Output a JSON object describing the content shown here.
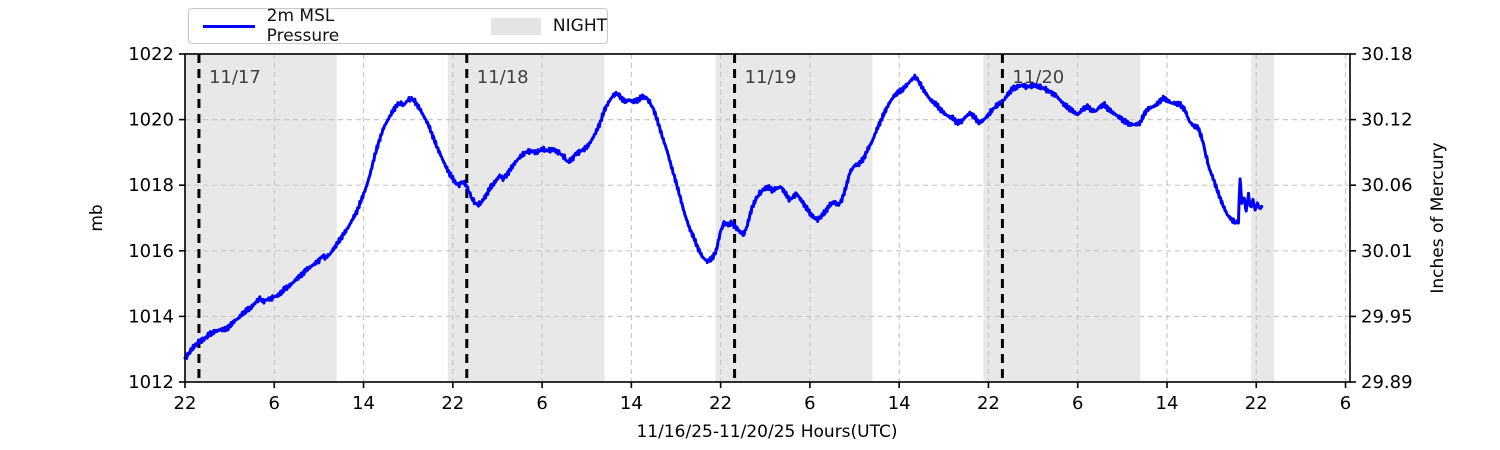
{
  "chart_data": {
    "type": "line",
    "title": "",
    "xlabel": "11/16/25-11/20/25  Hours(UTC)",
    "ylabel_left": "mb",
    "ylabel_right": "Inches of Mercury",
    "legend": [
      "2m MSL Pressure",
      "NIGHT"
    ],
    "colors": {
      "line": "#0000ff",
      "night_band": "#e8e8e8",
      "grid": "#c8c8c8",
      "date_label": "#404040",
      "axis": "#000000"
    },
    "ylim": [
      1012,
      1022
    ],
    "xlim_hours": [
      0,
      104.4
    ],
    "grid": true,
    "y_ticks_left": [
      1012,
      1014,
      1016,
      1018,
      1020,
      1022
    ],
    "y_ticks_right": [
      "29.89",
      "29.95",
      "30.01",
      "30.06",
      "30.12",
      "30.18"
    ],
    "x_ticks": [
      {
        "t": 0,
        "label": "22"
      },
      {
        "t": 8,
        "label": "6"
      },
      {
        "t": 16,
        "label": "14"
      },
      {
        "t": 24,
        "label": "22"
      },
      {
        "t": 32,
        "label": "6"
      },
      {
        "t": 40,
        "label": "14"
      },
      {
        "t": 48,
        "label": "22"
      },
      {
        "t": 56,
        "label": "6"
      },
      {
        "t": 64,
        "label": "14"
      },
      {
        "t": 72,
        "label": "22"
      },
      {
        "t": 80,
        "label": "6"
      },
      {
        "t": 88,
        "label": "14"
      },
      {
        "t": 96,
        "label": "22"
      },
      {
        "t": 104,
        "label": "6"
      }
    ],
    "night_bands": [
      [
        0,
        13.6
      ],
      [
        23.55,
        37.6
      ],
      [
        47.55,
        61.6
      ],
      [
        71.55,
        85.6
      ],
      [
        95.55,
        97.6
      ]
    ],
    "day_lines": [
      {
        "t": 1.25,
        "label": "11/17"
      },
      {
        "t": 25.25,
        "label": "11/18"
      },
      {
        "t": 49.25,
        "label": "11/19"
      },
      {
        "t": 73.25,
        "label": "11/20"
      }
    ],
    "noise_mb": 0.04,
    "series": [
      {
        "name": "2m MSL Pressure",
        "points": [
          [
            0,
            1012.7
          ],
          [
            0.3,
            1012.85
          ],
          [
            0.6,
            1013.0
          ],
          [
            1,
            1013.15
          ],
          [
            1.3,
            1013.25
          ],
          [
            1.7,
            1013.3
          ],
          [
            2,
            1013.4
          ],
          [
            2.4,
            1013.5
          ],
          [
            2.8,
            1013.55
          ],
          [
            3.2,
            1013.6
          ],
          [
            3.6,
            1013.6
          ],
          [
            4,
            1013.7
          ],
          [
            4.4,
            1013.85
          ],
          [
            4.8,
            1013.95
          ],
          [
            5.2,
            1014.1
          ],
          [
            5.6,
            1014.2
          ],
          [
            6,
            1014.3
          ],
          [
            6.4,
            1014.45
          ],
          [
            6.7,
            1014.55
          ],
          [
            7,
            1014.45
          ],
          [
            7.3,
            1014.5
          ],
          [
            7.7,
            1014.55
          ],
          [
            8,
            1014.6
          ],
          [
            8.4,
            1014.65
          ],
          [
            8.8,
            1014.8
          ],
          [
            9.2,
            1014.9
          ],
          [
            9.6,
            1015.0
          ],
          [
            10,
            1015.15
          ],
          [
            10.4,
            1015.25
          ],
          [
            10.8,
            1015.4
          ],
          [
            11.2,
            1015.5
          ],
          [
            11.6,
            1015.6
          ],
          [
            12,
            1015.7
          ],
          [
            12.3,
            1015.85
          ],
          [
            12.6,
            1015.8
          ],
          [
            13,
            1015.9
          ],
          [
            13.4,
            1016.1
          ],
          [
            13.8,
            1016.3
          ],
          [
            14.2,
            1016.5
          ],
          [
            14.6,
            1016.7
          ],
          [
            15,
            1016.95
          ],
          [
            15.4,
            1017.2
          ],
          [
            15.8,
            1017.55
          ],
          [
            16.2,
            1017.9
          ],
          [
            16.6,
            1018.35
          ],
          [
            17,
            1018.9
          ],
          [
            17.4,
            1019.35
          ],
          [
            17.8,
            1019.75
          ],
          [
            18.2,
            1020.0
          ],
          [
            18.6,
            1020.25
          ],
          [
            19,
            1020.45
          ],
          [
            19.3,
            1020.5
          ],
          [
            19.6,
            1020.45
          ],
          [
            20,
            1020.6
          ],
          [
            20.3,
            1020.65
          ],
          [
            20.6,
            1020.55
          ],
          [
            21,
            1020.35
          ],
          [
            21.4,
            1020.1
          ],
          [
            21.8,
            1019.85
          ],
          [
            22.2,
            1019.5
          ],
          [
            22.6,
            1019.15
          ],
          [
            23,
            1018.85
          ],
          [
            23.4,
            1018.55
          ],
          [
            23.8,
            1018.3
          ],
          [
            24.2,
            1018.1
          ],
          [
            24.5,
            1018.0
          ],
          [
            24.8,
            1018.1
          ],
          [
            25.1,
            1018.05
          ],
          [
            25.4,
            1017.85
          ],
          [
            25.7,
            1017.6
          ],
          [
            26,
            1017.45
          ],
          [
            26.3,
            1017.4
          ],
          [
            26.6,
            1017.5
          ],
          [
            27,
            1017.7
          ],
          [
            27.4,
            1017.95
          ],
          [
            27.8,
            1018.1
          ],
          [
            28.2,
            1018.3
          ],
          [
            28.5,
            1018.2
          ],
          [
            28.8,
            1018.3
          ],
          [
            29.2,
            1018.5
          ],
          [
            29.6,
            1018.7
          ],
          [
            30,
            1018.85
          ],
          [
            30.5,
            1019.0
          ],
          [
            31,
            1019.05
          ],
          [
            31.5,
            1019.0
          ],
          [
            32,
            1019.1
          ],
          [
            32.5,
            1019.05
          ],
          [
            33,
            1019.1
          ],
          [
            33.5,
            1019.0
          ],
          [
            34,
            1018.85
          ],
          [
            34.3,
            1018.7
          ],
          [
            34.7,
            1018.8
          ],
          [
            35,
            1018.95
          ],
          [
            35.5,
            1019.05
          ],
          [
            36,
            1019.15
          ],
          [
            36.4,
            1019.35
          ],
          [
            36.8,
            1019.6
          ],
          [
            37.2,
            1019.9
          ],
          [
            37.6,
            1020.3
          ],
          [
            38,
            1020.55
          ],
          [
            38.4,
            1020.75
          ],
          [
            38.7,
            1020.8
          ],
          [
            39,
            1020.7
          ],
          [
            39.4,
            1020.55
          ],
          [
            39.8,
            1020.6
          ],
          [
            40.2,
            1020.55
          ],
          [
            40.6,
            1020.6
          ],
          [
            41,
            1020.7
          ],
          [
            41.4,
            1020.65
          ],
          [
            41.7,
            1020.5
          ],
          [
            42,
            1020.3
          ],
          [
            42.4,
            1019.9
          ],
          [
            42.8,
            1019.45
          ],
          [
            43.2,
            1019.05
          ],
          [
            43.6,
            1018.55
          ],
          [
            44,
            1018.1
          ],
          [
            44.4,
            1017.6
          ],
          [
            44.8,
            1017.1
          ],
          [
            45.2,
            1016.7
          ],
          [
            45.6,
            1016.4
          ],
          [
            46,
            1016.05
          ],
          [
            46.4,
            1015.8
          ],
          [
            46.8,
            1015.68
          ],
          [
            47.2,
            1015.75
          ],
          [
            47.6,
            1016.0
          ],
          [
            48,
            1016.6
          ],
          [
            48.3,
            1016.85
          ],
          [
            48.6,
            1016.8
          ],
          [
            49,
            1016.85
          ],
          [
            49.4,
            1016.7
          ],
          [
            49.8,
            1016.55
          ],
          [
            50.1,
            1016.5
          ],
          [
            50.4,
            1016.8
          ],
          [
            50.8,
            1017.3
          ],
          [
            51.2,
            1017.6
          ],
          [
            51.5,
            1017.75
          ],
          [
            51.8,
            1017.85
          ],
          [
            52.2,
            1017.95
          ],
          [
            52.6,
            1017.85
          ],
          [
            53,
            1017.9
          ],
          [
            53.4,
            1017.95
          ],
          [
            53.8,
            1017.75
          ],
          [
            54.2,
            1017.55
          ],
          [
            54.5,
            1017.65
          ],
          [
            54.8,
            1017.75
          ],
          [
            55.2,
            1017.55
          ],
          [
            55.6,
            1017.35
          ],
          [
            56,
            1017.15
          ],
          [
            56.4,
            1017.0
          ],
          [
            56.7,
            1016.95
          ],
          [
            57,
            1017.05
          ],
          [
            57.4,
            1017.2
          ],
          [
            57.8,
            1017.4
          ],
          [
            58.2,
            1017.5
          ],
          [
            58.5,
            1017.4
          ],
          [
            58.8,
            1017.5
          ],
          [
            59.2,
            1017.9
          ],
          [
            59.6,
            1018.4
          ],
          [
            60,
            1018.6
          ],
          [
            60.4,
            1018.65
          ],
          [
            60.8,
            1018.8
          ],
          [
            61.2,
            1019.1
          ],
          [
            61.6,
            1019.35
          ],
          [
            62,
            1019.7
          ],
          [
            62.4,
            1020.0
          ],
          [
            62.8,
            1020.3
          ],
          [
            63.2,
            1020.55
          ],
          [
            63.6,
            1020.75
          ],
          [
            64,
            1020.85
          ],
          [
            64.4,
            1020.95
          ],
          [
            64.8,
            1021.1
          ],
          [
            65.2,
            1021.25
          ],
          [
            65.4,
            1021.3
          ],
          [
            65.7,
            1021.2
          ],
          [
            66,
            1021.0
          ],
          [
            66.4,
            1020.8
          ],
          [
            66.8,
            1020.6
          ],
          [
            67.2,
            1020.5
          ],
          [
            67.6,
            1020.35
          ],
          [
            68,
            1020.2
          ],
          [
            68.4,
            1020.1
          ],
          [
            68.8,
            1020.05
          ],
          [
            69.2,
            1019.9
          ],
          [
            69.6,
            1019.95
          ],
          [
            70,
            1020.1
          ],
          [
            70.4,
            1020.2
          ],
          [
            70.8,
            1020.05
          ],
          [
            71.2,
            1019.9
          ],
          [
            71.6,
            1020.0
          ],
          [
            72,
            1020.15
          ],
          [
            72.5,
            1020.35
          ],
          [
            73,
            1020.5
          ],
          [
            73.4,
            1020.6
          ],
          [
            73.8,
            1020.8
          ],
          [
            74.2,
            1020.95
          ],
          [
            74.6,
            1021.0
          ],
          [
            75,
            1021.05
          ],
          [
            75.5,
            1021.0
          ],
          [
            76,
            1021.05
          ],
          [
            76.5,
            1021.0
          ],
          [
            77,
            1020.95
          ],
          [
            77.5,
            1020.85
          ],
          [
            78,
            1020.75
          ],
          [
            78.4,
            1020.6
          ],
          [
            78.8,
            1020.45
          ],
          [
            79.2,
            1020.35
          ],
          [
            79.6,
            1020.25
          ],
          [
            80,
            1020.15
          ],
          [
            80.4,
            1020.3
          ],
          [
            80.8,
            1020.4
          ],
          [
            81.2,
            1020.3
          ],
          [
            81.6,
            1020.25
          ],
          [
            82,
            1020.4
          ],
          [
            82.4,
            1020.45
          ],
          [
            82.8,
            1020.3
          ],
          [
            83.2,
            1020.2
          ],
          [
            83.6,
            1020.1
          ],
          [
            84,
            1020.0
          ],
          [
            84.4,
            1019.9
          ],
          [
            84.8,
            1019.85
          ],
          [
            85.2,
            1019.85
          ],
          [
            85.6,
            1019.9
          ],
          [
            86,
            1020.2
          ],
          [
            86.4,
            1020.35
          ],
          [
            86.8,
            1020.4
          ],
          [
            87.2,
            1020.5
          ],
          [
            87.6,
            1020.65
          ],
          [
            88,
            1020.6
          ],
          [
            88.4,
            1020.5
          ],
          [
            88.8,
            1020.5
          ],
          [
            89.2,
            1020.45
          ],
          [
            89.6,
            1020.3
          ],
          [
            90,
            1019.95
          ],
          [
            90.4,
            1019.8
          ],
          [
            90.8,
            1019.75
          ],
          [
            91.2,
            1019.35
          ],
          [
            91.5,
            1018.9
          ],
          [
            91.8,
            1018.5
          ],
          [
            92.2,
            1018.15
          ],
          [
            92.6,
            1017.75
          ],
          [
            93,
            1017.4
          ],
          [
            93.4,
            1017.1
          ],
          [
            93.8,
            1016.95
          ],
          [
            94.1,
            1016.85
          ],
          [
            94.4,
            1016.9
          ],
          [
            94.55,
            1018.2
          ],
          [
            94.7,
            1017.5
          ],
          [
            94.9,
            1017.65
          ],
          [
            95.1,
            1017.2
          ],
          [
            95.3,
            1017.7
          ],
          [
            95.5,
            1017.3
          ],
          [
            95.7,
            1017.55
          ],
          [
            95.9,
            1017.25
          ],
          [
            96.1,
            1017.45
          ],
          [
            96.3,
            1017.3
          ],
          [
            96.5,
            1017.35
          ]
        ]
      }
    ]
  }
}
